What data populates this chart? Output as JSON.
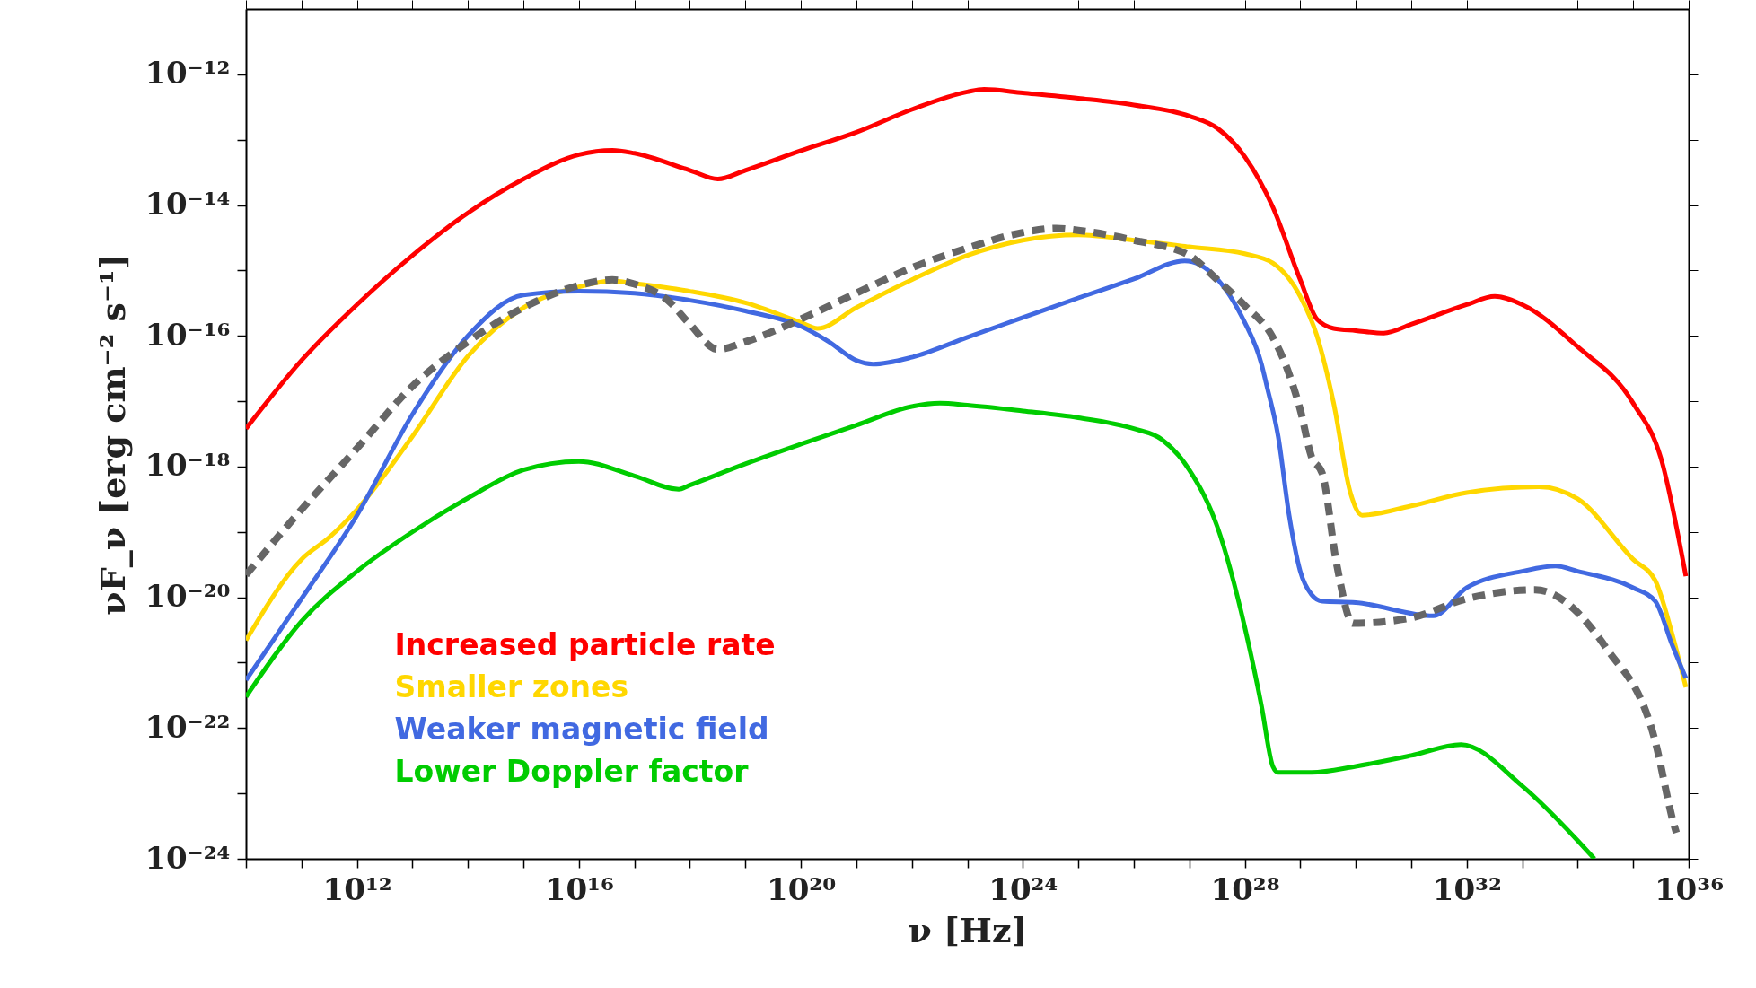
{
  "chart_data": {
    "type": "line",
    "xlabel": "ν [Hz]",
    "ylabel": "νF_ν [erg cm⁻² s⁻¹]",
    "log": "xy",
    "grid": false,
    "legend": "bottom left",
    "xlim": [
      10000000000.0,
      1e+36
    ],
    "ylim": [
      1e-24,
      1e-11
    ],
    "xticks": [
      {
        "value": 10000000000.0,
        "label": null
      },
      {
        "value": 100000000000.0,
        "label": null
      },
      {
        "value": 1000000000000.0,
        "label": "10¹²"
      },
      {
        "value": 10000000000000.0,
        "label": null
      },
      {
        "value": 100000000000000.0,
        "label": null
      },
      {
        "value": 1000000000000000.0,
        "label": null
      },
      {
        "value": 1e+16,
        "label": "10¹⁶"
      },
      {
        "value": 1e+17,
        "label": null
      },
      {
        "value": 1e+18,
        "label": null
      },
      {
        "value": 1e+19,
        "label": null
      },
      {
        "value": 1e+20,
        "label": "10²⁰"
      },
      {
        "value": 1e+21,
        "label": null
      },
      {
        "value": 1e+22,
        "label": null
      },
      {
        "value": 1e+23,
        "label": null
      },
      {
        "value": 1e+24,
        "label": "10²⁴"
      },
      {
        "value": 1e+25,
        "label": null
      },
      {
        "value": 1e+26,
        "label": null
      },
      {
        "value": 1e+27,
        "label": null
      },
      {
        "value": 1e+28,
        "label": "10²⁸"
      },
      {
        "value": 1e+29,
        "label": null
      },
      {
        "value": 1e+30,
        "label": null
      },
      {
        "value": 1e+31,
        "label": null
      },
      {
        "value": 1e+32,
        "label": "10³²"
      },
      {
        "value": 1e+33,
        "label": null
      },
      {
        "value": 1e+34,
        "label": null
      },
      {
        "value": 1e+35,
        "label": null
      },
      {
        "value": 1e+36,
        "label": "10³⁶"
      }
    ],
    "yticks": [
      {
        "value": 1e-24,
        "label": "10⁻²⁴"
      },
      {
        "value": 1e-23,
        "label": null
      },
      {
        "value": 1e-22,
        "label": "10⁻²²"
      },
      {
        "value": 1e-21,
        "label": null
      },
      {
        "value": 1e-20,
        "label": "10⁻²⁰"
      },
      {
        "value": 1e-19,
        "label": null
      },
      {
        "value": 1e-18,
        "label": "10⁻¹⁸"
      },
      {
        "value": 1e-17,
        "label": null
      },
      {
        "value": 1e-16,
        "label": "10⁻¹⁶"
      },
      {
        "value": 1e-15,
        "label": null
      },
      {
        "value": 1e-14,
        "label": "10⁻¹⁴"
      },
      {
        "value": 1e-13,
        "label": null
      },
      {
        "value": 1e-12,
        "label": "10⁻¹²"
      }
    ],
    "series": [
      {
        "name": "Increased particle rate",
        "color": "#ff0000",
        "line_style": "solid",
        "x": [
          10000000000.0,
          100000000000.0,
          1000000000000.0,
          10000000000000.0,
          100000000000000.0,
          1000000000000000.0,
          1e+16,
          4e+16,
          1e+17,
          1e+18,
          3.2e+18,
          1e+19,
          1e+20,
          1e+21,
          1e+22,
          1e+23,
          2e+23,
          1e+24,
          1e+25,
          1e+26,
          1e+27,
          3.2e+27,
          1e+28,
          3.2e+28,
          1e+29,
          2e+29,
          4e+29,
          1e+30,
          3.2e+30,
          1e+31,
          1e+32,
          3.2e+32,
          1e+33,
          1e+34,
          1e+35,
          3.2e+35,
          8.9e+35
        ],
        "values": [
          3.8e-18,
          4.2e-17,
          3e-16,
          1.7e-15,
          7.6e-15,
          2.5e-14,
          5.9e-14,
          6.9e-14,
          6.2e-14,
          3.4e-14,
          2.5e-14,
          3.4e-14,
          6.8e-14,
          1.3e-13,
          2.9e-13,
          5.4e-13,
          5.9e-13,
          5.2e-13,
          4.3e-13,
          3.4e-13,
          2.3e-13,
          1.5e-13,
          5.5e-14,
          9.3e-15,
          7.2e-16,
          1.8e-16,
          1.3e-16,
          1.2e-16,
          1.1e-16,
          1.5e-16,
          3e-16,
          4e-16,
          3e-16,
          6.8e-17,
          9.3e-18,
          1.3e-18,
          2.1e-20
        ]
      },
      {
        "name": "Smaller zones",
        "color": "#ffd700",
        "line_style": "solid",
        "x": [
          10000000000.0,
          100000000000.0,
          320000000000.0,
          1000000000000.0,
          10000000000000.0,
          100000000000000.0,
          1000000000000000.0,
          1e+16,
          4e+16,
          1e+17,
          1e+18,
          1e+19,
          1e+20,
          2e+20,
          1e+21,
          1e+22,
          1e+23,
          1e+24,
          1e+25,
          1e+26,
          1e+27,
          1e+28,
          3.2e+28,
          1e+29,
          2e+29,
          4e+29,
          8e+29,
          1.3e+30,
          1e+31,
          1e+32,
          2e+33,
          1e+34,
          1e+35,
          2.5e+35,
          5e+35,
          8.9e+35
        ],
        "values": [
          2.2e-21,
          3.8e-20,
          8.3e-20,
          2.2e-19,
          2.9e-18,
          4.9e-17,
          2.7e-16,
          5.6e-16,
          6.9e-16,
          6.3e-16,
          4.8e-16,
          3.2e-16,
          1.6e-16,
          1.3e-16,
          2.7e-16,
          7.2e-16,
          1.7e-15,
          2.9e-15,
          3.5e-15,
          2.9e-15,
          2.3e-15,
          1.8e-15,
          1.3e-15,
          4e-16,
          1e-16,
          9.3e-18,
          4e-19,
          1.8e-19,
          2.5e-19,
          4e-19,
          4.9e-19,
          3.2e-19,
          3.8e-20,
          1.8e-20,
          2.8e-21,
          4.2e-22
        ]
      },
      {
        "name": "Weaker magnetic field",
        "color": "#4169e1",
        "line_style": "solid",
        "x": [
          10000000000.0,
          100000000000.0,
          1000000000000.0,
          10000000000000.0,
          100000000000000.0,
          1000000000000000.0,
          1e+16,
          1e+17,
          1e+18,
          1e+19,
          1e+20,
          3.2e+20,
          1e+21,
          2e+21,
          1e+22,
          1e+23,
          1e+24,
          1e+25,
          1e+26,
          8.3e+26,
          1e+28,
          2e+28,
          2.5e+28,
          4e+28,
          6.3e+28,
          1e+29,
          1.6e+29,
          2.5e+29,
          1e+30,
          2.5e+31,
          1e+32,
          1e+33,
          4e+33,
          1e+34,
          1e+35,
          2.5e+35,
          5e+35,
          8.9e+35
        ],
        "values": [
          5.4e-22,
          9.5e-21,
          1.8e-19,
          6.3e-18,
          1e-16,
          4.2e-16,
          4.8e-16,
          4.5e-16,
          3.5e-16,
          2.4e-16,
          1.4e-16,
          8.1e-17,
          4.2e-17,
          3.7e-17,
          4.7e-17,
          9.5e-17,
          1.9e-16,
          3.8e-16,
          7.4e-16,
          1.4e-15,
          1.6e-16,
          3.7e-17,
          1.7e-17,
          2.9e-18,
          1.8e-19,
          2.5e-20,
          1.1e-20,
          8.7e-21,
          8.3e-21,
          5.2e-21,
          1.4e-20,
          2.5e-20,
          3e-20,
          2.5e-20,
          1.4e-20,
          8.7e-21,
          1.9e-21,
          5.8e-22
        ]
      },
      {
        "name": "Lower Doppler factor",
        "color": "#00cc00",
        "line_style": "solid",
        "x": [
          10000000000.0,
          100000000000.0,
          1000000000000.0,
          10000000000000.0,
          100000000000000.0,
          1000000000000000.0,
          1e+16,
          1e+17,
          6.3e+17,
          1e+18,
          1e+19,
          1e+20,
          1e+21,
          1e+22,
          3.2e+22,
          1e+23,
          1e+24,
          1e+25,
          1e+26,
          3.2e+26,
          1e+27,
          3.2e+27,
          1e+28,
          2e+28,
          3.2e+28,
          4e+28,
          1.6e+29,
          1e+30,
          1e+31,
          7.9e+31,
          1e+33,
          1e+34,
          2e+34
        ],
        "values": [
          3e-22,
          4.3e-21,
          2.5e-20,
          1e-19,
          3.3e-19,
          8.9e-19,
          1.2e-18,
          7.2e-19,
          4.5e-19,
          5.2e-19,
          1.1e-18,
          2.2e-18,
          4.3e-18,
          8.3e-18,
          9.3e-18,
          8.7e-18,
          7.1e-18,
          5.6e-18,
          3.8e-18,
          2.6e-18,
          8.9e-19,
          1.2e-19,
          3.5e-21,
          2.2e-22,
          2.6e-23,
          2.1e-23,
          2.1e-23,
          2.6e-23,
          3.8e-23,
          5.6e-23,
          1.3e-23,
          1.9e-24,
          1e-24
        ]
      },
      {
        "color": "#666666",
        "line_style": "dashed",
        "x": [
          10000000000.0,
          100000000000.0,
          1000000000000.0,
          10000000000000.0,
          100000000000000.0,
          1000000000000000.0,
          1e+16,
          4e+16,
          1e+17,
          4e+17,
          1e+18,
          3.2e+18,
          1e+19,
          1e+20,
          1e+21,
          1e+22,
          1e+23,
          1e+24,
          4e+24,
          1e+25,
          1e+26,
          1e+27,
          3.2e+27,
          1e+28,
          3.2e+28,
          6.3e+28,
          1e+29,
          1.6e+29,
          2.5e+29,
          4.6e+29,
          8.9e+29,
          9.5e+30,
          1e+32,
          1.7e+33,
          3.4e+34,
          2.4e+35,
          5.5e+35,
          6e+35
        ],
        "values": [
          2.2e-20,
          2.2e-19,
          1.9e-18,
          1.7e-17,
          8.1e-17,
          2.7e-16,
          5.9e-16,
          7.2e-16,
          6.2e-16,
          3.5e-16,
          1.5e-16,
          6.2e-17,
          8.1e-17,
          1.8e-16,
          4.5e-16,
          1.1e-15,
          2.2e-15,
          3.8e-15,
          4.4e-15,
          4.1e-15,
          2.9e-15,
          1.7e-15,
          7.2e-16,
          2.9e-16,
          9.5e-17,
          2.6e-17,
          7.4e-18,
          1.4e-18,
          7.8e-19,
          3e-20,
          4e-21,
          4.8e-21,
          9.5e-21,
          1.3e-20,
          1.6e-21,
          7.1e-23,
          3.2e-24,
          2.5e-24
        ]
      }
    ]
  }
}
